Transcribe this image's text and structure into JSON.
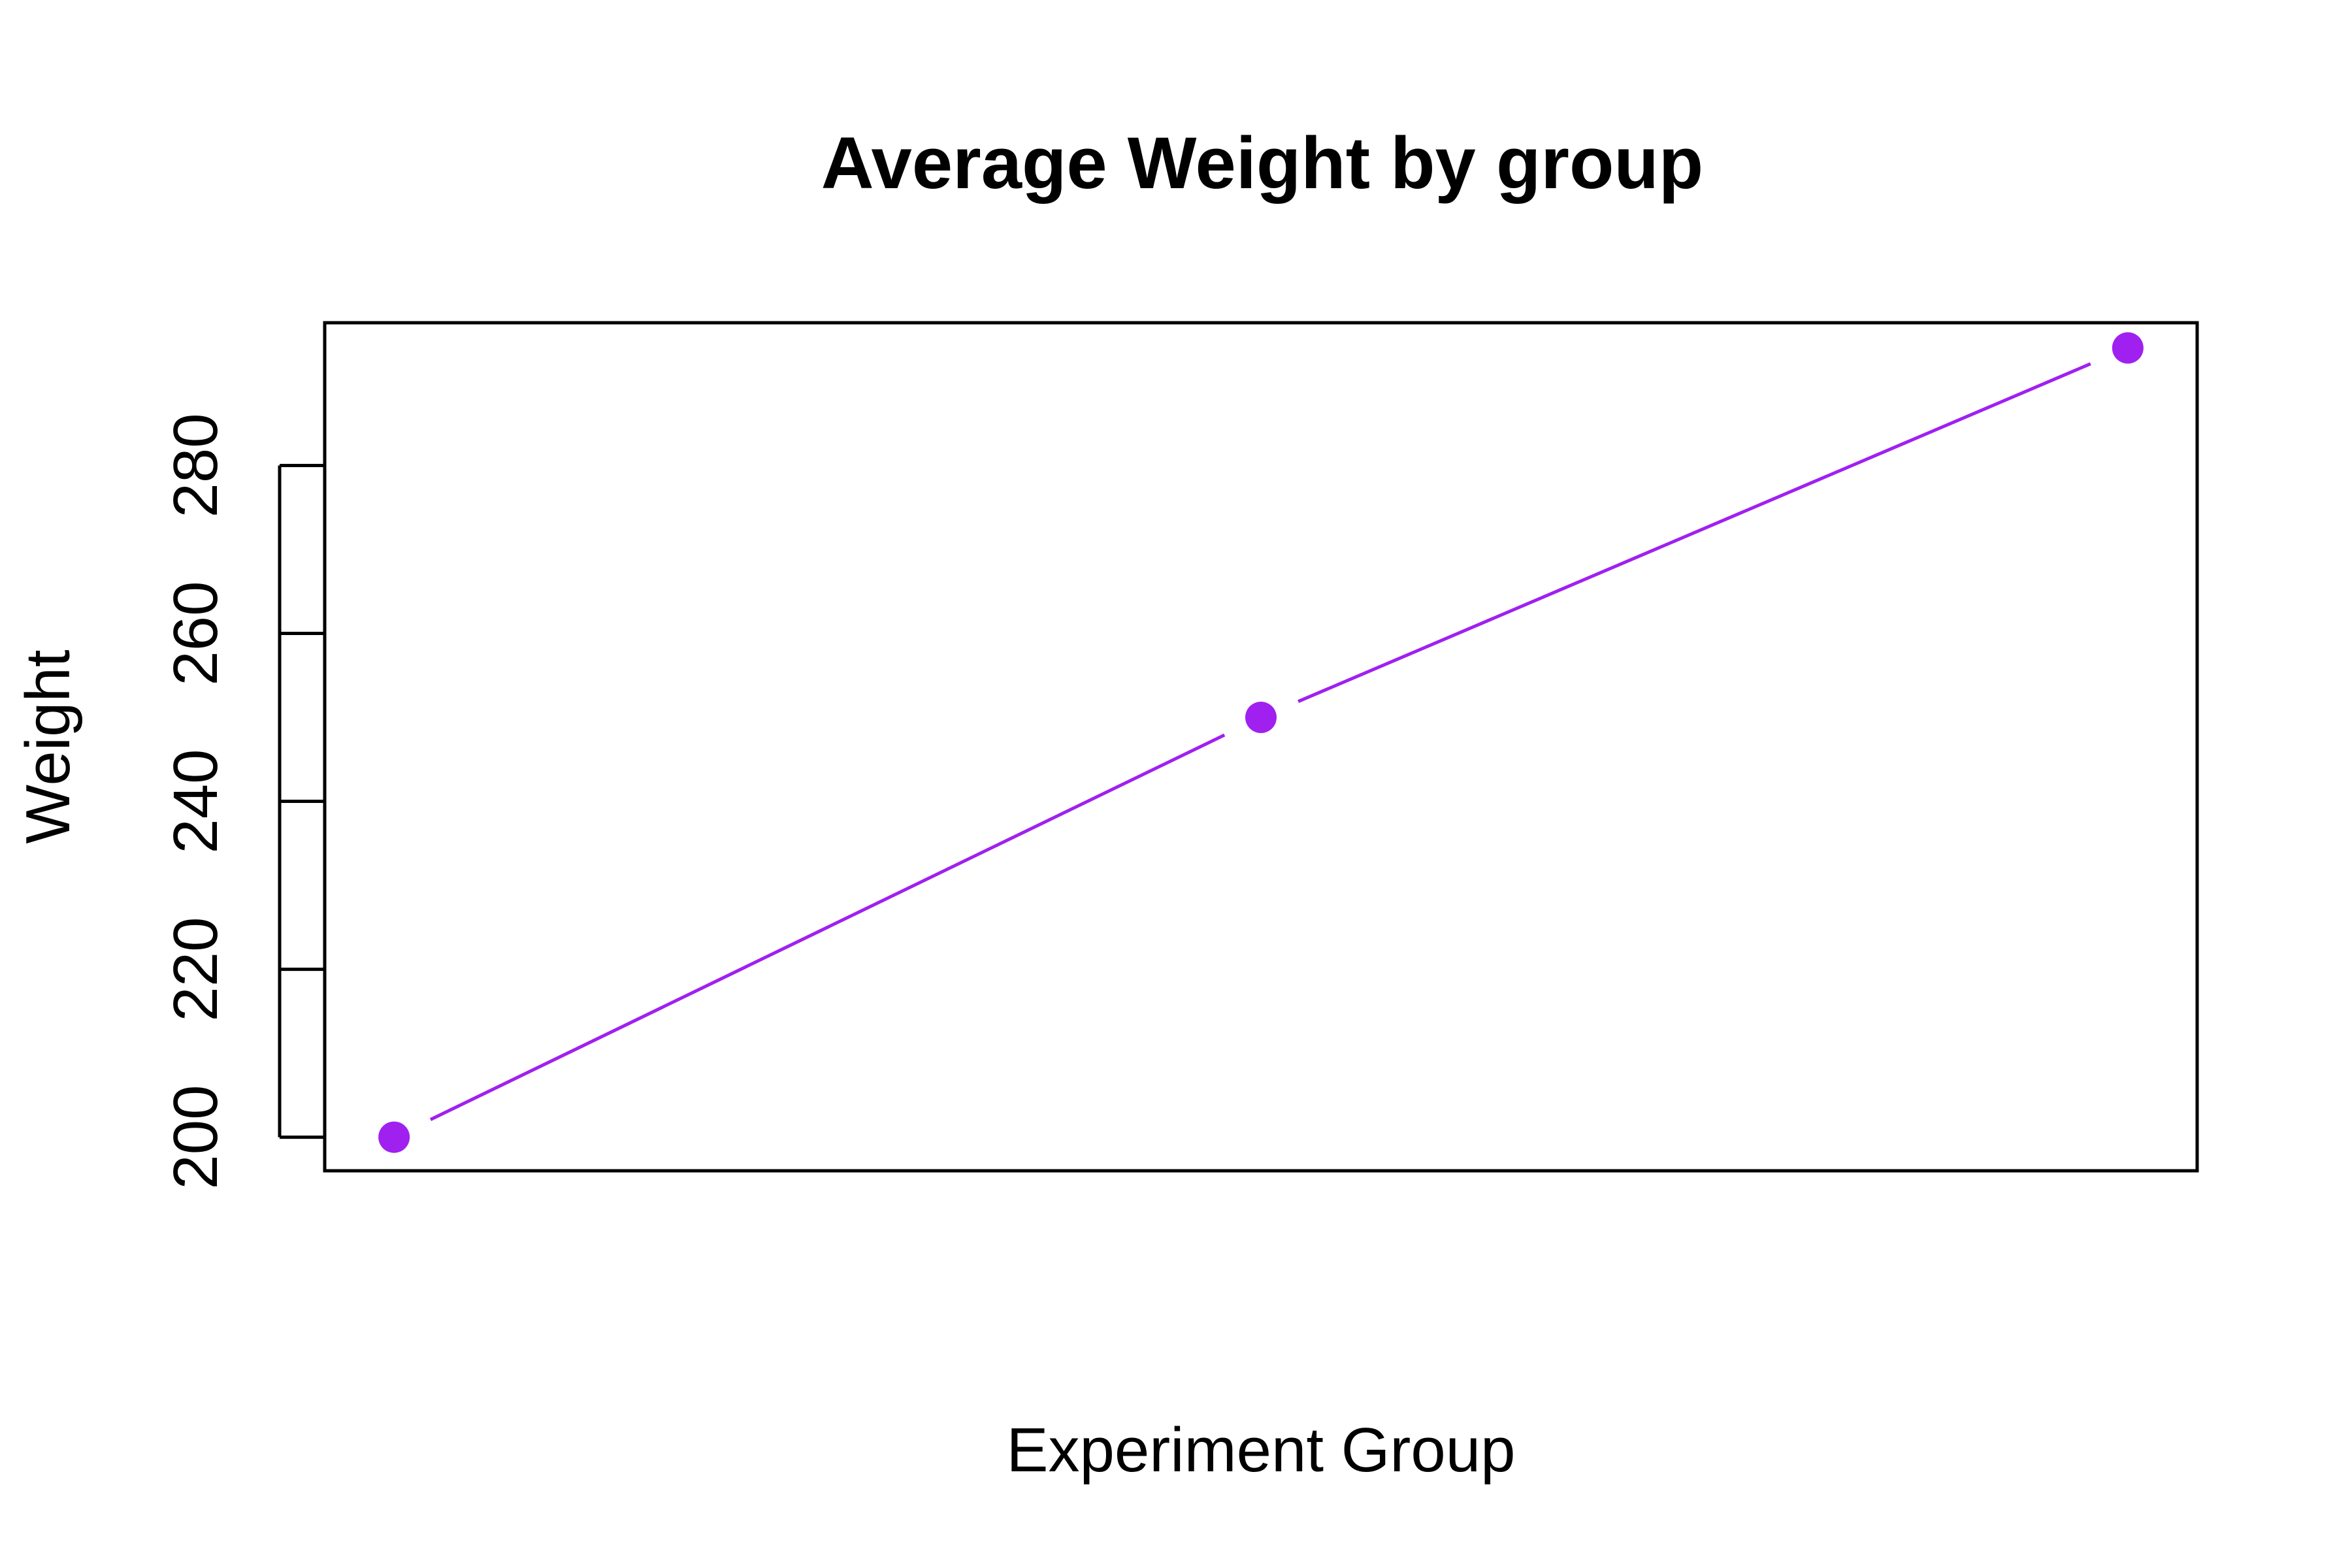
{
  "chart_data": {
    "type": "line",
    "title": "Average Weight by group",
    "xlabel": "Experiment Group",
    "ylabel": "Weight",
    "x": [
      1,
      2,
      3
    ],
    "ylim": [
      196,
      297
    ],
    "xlim": [
      0.92,
      3.08
    ],
    "yticks": [
      200,
      220,
      240,
      260,
      280
    ],
    "yticklabels": [
      "200",
      "220",
      "240",
      "260",
      "280"
    ],
    "series": [
      {
        "values": [
          200,
          250,
          294
        ],
        "color": "#a020f0"
      }
    ],
    "grid": false,
    "marker": "filled-circle",
    "line_style": "overplotted (line with gaps at points)"
  }
}
